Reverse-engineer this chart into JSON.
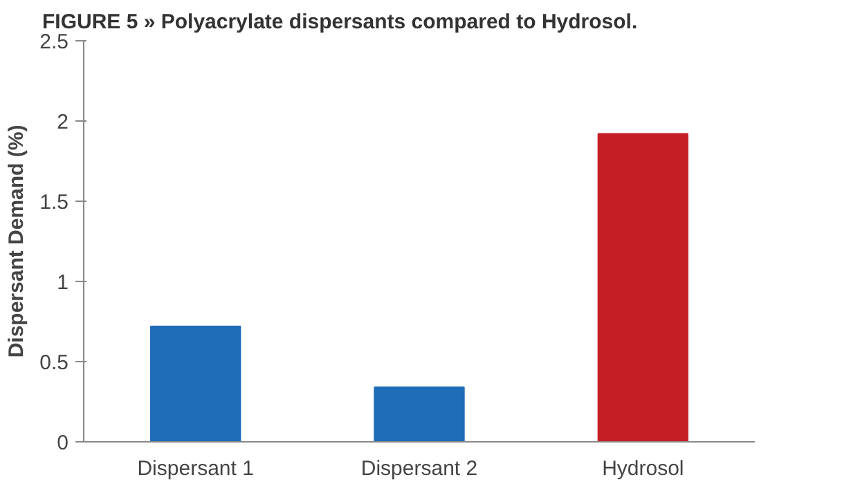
{
  "chart_data": {
    "type": "bar",
    "title": "FIGURE 5 » Polyacrylate dispersants compared to Hydrosol.",
    "ylabel": "Dispersant Demand (%)",
    "categories": [
      "Dispersant 1",
      "Dispersant 2",
      "Hydrosol"
    ],
    "values": [
      0.72,
      0.34,
      1.92
    ],
    "colors": [
      "#1f6cb8",
      "#1f6cb8",
      "#c51f26"
    ],
    "ylim": [
      0,
      2.5
    ],
    "yticks": [
      0,
      0.5,
      1,
      1.5,
      2,
      2.5
    ],
    "grid": false
  }
}
